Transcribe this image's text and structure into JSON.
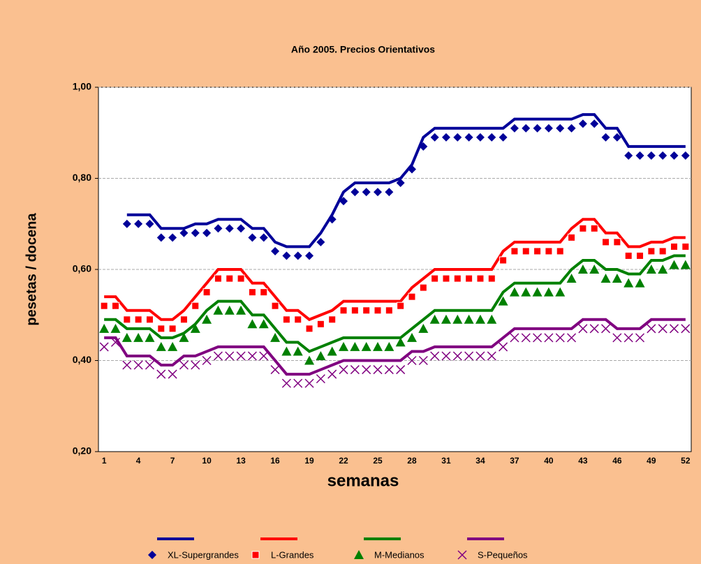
{
  "chart_data": {
    "type": "line",
    "title": "Año 2005. Precios Orientativos",
    "x_label": "semanas",
    "y_label": "pesetas / docena",
    "categories": [
      "1",
      null,
      null,
      "4",
      null,
      null,
      "7",
      null,
      null,
      "10",
      null,
      null,
      "13",
      null,
      null,
      "16",
      null,
      null,
      "19",
      null,
      null,
      "22",
      null,
      null,
      "25",
      null,
      null,
      "28",
      null,
      null,
      "31",
      null,
      null,
      "34",
      null,
      null,
      "37",
      null,
      null,
      "40",
      null,
      null,
      "43",
      null,
      null,
      "46",
      null,
      null,
      "49",
      null,
      null,
      "52"
    ],
    "ylim": [
      0.2,
      1.0
    ],
    "yticks": [
      {
        "value": 0.2,
        "label": "0,20"
      },
      {
        "value": 0.4,
        "label": "0,40"
      },
      {
        "value": 0.6,
        "label": "0,60"
      },
      {
        "value": 0.8,
        "label": "0,80"
      },
      {
        "value": 1.0,
        "label": "1,00"
      }
    ],
    "grid": true,
    "series": [
      {
        "color": "#000099",
        "values": [
          null,
          null,
          0.72,
          0.72,
          0.72,
          0.69,
          0.69,
          0.69,
          0.7,
          0.7,
          0.71,
          0.71,
          0.71,
          0.69,
          0.69,
          0.66,
          0.65,
          0.65,
          0.65,
          0.68,
          0.72,
          0.77,
          0.79,
          0.79,
          0.79,
          0.79,
          0.8,
          0.83,
          0.89,
          0.91,
          0.91,
          0.91,
          0.91,
          0.91,
          0.91,
          0.91,
          0.93,
          0.93,
          0.93,
          0.93,
          0.93,
          0.93,
          0.94,
          0.94,
          0.91,
          0.91,
          0.87,
          0.87,
          0.87,
          0.87,
          0.87,
          0.87
        ]
      },
      {
        "name": "XL-Supergrandes",
        "color": "#000099",
        "marker": "diamond",
        "values": [
          null,
          null,
          0.7,
          0.7,
          0.7,
          0.67,
          0.67,
          0.68,
          0.68,
          0.68,
          0.69,
          0.69,
          0.69,
          0.67,
          0.67,
          0.64,
          0.63,
          0.63,
          0.63,
          0.66,
          0.71,
          0.75,
          0.77,
          0.77,
          0.77,
          0.77,
          0.79,
          0.82,
          0.87,
          0.89,
          0.89,
          0.89,
          0.89,
          0.89,
          0.89,
          0.89,
          0.91,
          0.91,
          0.91,
          0.91,
          0.91,
          0.91,
          0.92,
          0.92,
          0.89,
          0.89,
          0.85,
          0.85,
          0.85,
          0.85,
          0.85,
          0.85
        ]
      },
      {
        "color": "#FF0000",
        "values": [
          0.54,
          0.54,
          0.51,
          0.51,
          0.51,
          0.49,
          0.49,
          0.51,
          0.54,
          0.57,
          0.6,
          0.6,
          0.6,
          0.57,
          0.57,
          0.54,
          0.51,
          0.51,
          0.49,
          0.5,
          0.51,
          0.53,
          0.53,
          0.53,
          0.53,
          0.53,
          0.53,
          0.56,
          0.58,
          0.6,
          0.6,
          0.6,
          0.6,
          0.6,
          0.6,
          0.64,
          0.66,
          0.66,
          0.66,
          0.66,
          0.66,
          0.69,
          0.71,
          0.71,
          0.68,
          0.68,
          0.65,
          0.65,
          0.66,
          0.66,
          0.67,
          0.67
        ]
      },
      {
        "name": "L-Grandes",
        "color": "#FF0000",
        "marker": "square",
        "values": [
          0.52,
          0.52,
          0.49,
          0.49,
          0.49,
          0.47,
          0.47,
          0.49,
          0.52,
          0.55,
          0.58,
          0.58,
          0.58,
          0.55,
          0.55,
          0.52,
          0.49,
          0.49,
          0.47,
          0.48,
          0.49,
          0.51,
          0.51,
          0.51,
          0.51,
          0.51,
          0.52,
          0.54,
          0.56,
          0.58,
          0.58,
          0.58,
          0.58,
          0.58,
          0.58,
          0.62,
          0.64,
          0.64,
          0.64,
          0.64,
          0.64,
          0.67,
          0.69,
          0.69,
          0.66,
          0.66,
          0.63,
          0.63,
          0.64,
          0.64,
          0.65,
          0.65
        ]
      },
      {
        "color": "#008000",
        "values": [
          0.49,
          0.49,
          0.47,
          0.47,
          0.47,
          0.45,
          0.45,
          0.46,
          0.48,
          0.51,
          0.53,
          0.53,
          0.53,
          0.5,
          0.5,
          0.47,
          0.44,
          0.44,
          0.42,
          0.43,
          0.44,
          0.45,
          0.45,
          0.45,
          0.45,
          0.45,
          0.45,
          0.47,
          0.49,
          0.51,
          0.51,
          0.51,
          0.51,
          0.51,
          0.51,
          0.55,
          0.57,
          0.57,
          0.57,
          0.57,
          0.57,
          0.6,
          0.62,
          0.62,
          0.6,
          0.6,
          0.59,
          0.59,
          0.62,
          0.62,
          0.63,
          0.63
        ]
      },
      {
        "name": "M-Medianos",
        "color": "#008000",
        "marker": "triangle",
        "values": [
          0.47,
          0.47,
          0.45,
          0.45,
          0.45,
          0.43,
          0.43,
          0.45,
          0.47,
          0.49,
          0.51,
          0.51,
          0.51,
          0.48,
          0.48,
          0.45,
          0.42,
          0.42,
          0.4,
          0.41,
          0.42,
          0.43,
          0.43,
          0.43,
          0.43,
          0.43,
          0.44,
          0.45,
          0.47,
          0.49,
          0.49,
          0.49,
          0.49,
          0.49,
          0.49,
          0.53,
          0.55,
          0.55,
          0.55,
          0.55,
          0.55,
          0.58,
          0.6,
          0.6,
          0.58,
          0.58,
          0.57,
          0.57,
          0.6,
          0.6,
          0.61,
          0.61
        ]
      },
      {
        "color": "#800080",
        "values": [
          0.45,
          0.45,
          0.41,
          0.41,
          0.41,
          0.39,
          0.39,
          0.41,
          0.41,
          0.42,
          0.43,
          0.43,
          0.43,
          0.43,
          0.43,
          0.4,
          0.37,
          0.37,
          0.37,
          0.38,
          0.39,
          0.4,
          0.4,
          0.4,
          0.4,
          0.4,
          0.4,
          0.42,
          0.42,
          0.43,
          0.43,
          0.43,
          0.43,
          0.43,
          0.43,
          0.45,
          0.47,
          0.47,
          0.47,
          0.47,
          0.47,
          0.47,
          0.49,
          0.49,
          0.49,
          0.47,
          0.47,
          0.47,
          0.49,
          0.49,
          0.49,
          0.49
        ]
      },
      {
        "name": "S-Pequeños",
        "color": "#800080",
        "marker": "x",
        "values": [
          0.43,
          0.44,
          0.39,
          0.39,
          0.39,
          0.37,
          0.37,
          0.39,
          0.39,
          0.4,
          0.41,
          0.41,
          0.41,
          0.41,
          0.41,
          0.38,
          0.35,
          0.35,
          0.35,
          0.36,
          0.37,
          0.38,
          0.38,
          0.38,
          0.38,
          0.38,
          0.38,
          0.4,
          0.4,
          0.41,
          0.41,
          0.41,
          0.41,
          0.41,
          0.41,
          0.43,
          0.45,
          0.45,
          0.45,
          0.45,
          0.45,
          0.45,
          0.47,
          0.47,
          0.47,
          0.45,
          0.45,
          0.45,
          0.47,
          0.47,
          0.47,
          0.47
        ]
      }
    ]
  }
}
